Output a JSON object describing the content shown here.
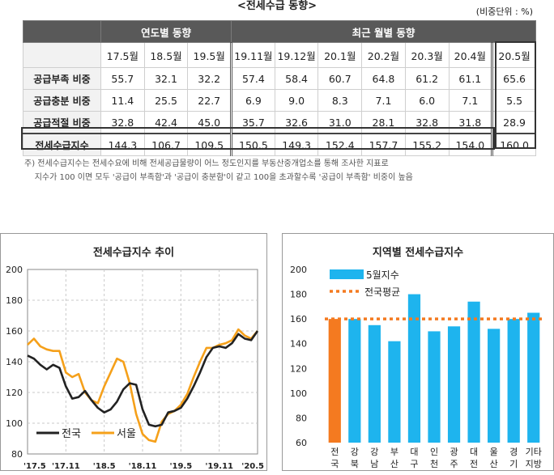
{
  "table": {
    "title": "<전세수급 동향>",
    "unit": "(비중단위 : %)",
    "group1": "연도별 동향",
    "group2": "최근 월별 동향",
    "columns": [
      "17.5월",
      "18.5월",
      "19.5월",
      "19.11월",
      "19.12월",
      "20.1월",
      "20.2월",
      "20.3월",
      "20.4월",
      "20.5월"
    ],
    "rows": [
      {
        "label": "공급부족 비중",
        "values": [
          "55.7",
          "32.1",
          "32.2",
          "57.4",
          "58.4",
          "60.7",
          "64.8",
          "61.2",
          "61.1",
          "65.6"
        ]
      },
      {
        "label": "공급충분 비중",
        "values": [
          "11.4",
          "25.5",
          "22.7",
          "6.9",
          "9.0",
          "8.3",
          "7.1",
          "6.0",
          "7.1",
          "5.5"
        ]
      },
      {
        "label": "공급적절 비중",
        "values": [
          "32.8",
          "42.4",
          "45.0",
          "35.7",
          "32.6",
          "31.0",
          "28.1",
          "32.8",
          "31.8",
          "28.9"
        ]
      },
      {
        "label": "전세수급지수",
        "values": [
          "144.3",
          "106.7",
          "109.5",
          "150.5",
          "149.3",
          "152.4",
          "157.7",
          "155.2",
          "154.0",
          "160.0"
        ]
      }
    ],
    "note_line1": "주) 전세수급지수는 전세수요에 비해 전세공급물량이 어느 정도인지를 부동산중개업소를 통해 조사한 지표로",
    "note_line2": "    지수가 100 이면 모두 '공급이 부족함'과 '공급이 충분함'이 같고 100을 초과할수록 '공급이 부족함' 비중이 높음"
  },
  "colors": {
    "national": "#222222",
    "seoul": "#f5a01a",
    "bar": "#1eb4ee",
    "bar_highlight": "#f47a20",
    "avg_line": "#f47a20"
  },
  "chart_data": [
    {
      "type": "line",
      "title": "전세수급지수 추이",
      "ylim": [
        80,
        200
      ],
      "yticks": [
        80,
        100,
        120,
        140,
        160,
        180,
        200
      ],
      "xtick_labels": [
        "'17.5",
        "'17.11",
        "'18.5",
        "'18.11",
        "'19.5",
        "'19.11",
        "'20.5"
      ],
      "x": [
        "'17.5",
        "'17.6",
        "'17.7",
        "'17.8",
        "'17.9",
        "'17.10",
        "'17.11",
        "'17.12",
        "'18.1",
        "'18.2",
        "'18.3",
        "'18.4",
        "'18.5",
        "'18.6",
        "'18.7",
        "'18.8",
        "'18.9",
        "'18.10",
        "'18.11",
        "'18.12",
        "'19.1",
        "'19.2",
        "'19.3",
        "'19.4",
        "'19.5",
        "'19.6",
        "'19.7",
        "'19.8",
        "'19.9",
        "'19.10",
        "'19.11",
        "'19.12",
        "'20.1",
        "'20.2",
        "'20.3",
        "'20.4",
        "'20.5"
      ],
      "series": [
        {
          "name": "전국",
          "values": [
            144,
            142,
            138,
            135,
            138,
            136,
            124,
            116,
            117,
            121,
            115,
            110,
            107,
            109,
            114,
            122,
            126,
            125,
            109,
            99,
            98,
            99,
            107,
            108,
            110,
            116,
            124,
            133,
            143,
            149,
            150,
            149,
            152,
            158,
            155,
            154,
            160
          ]
        },
        {
          "name": "서울",
          "values": [
            151,
            155,
            150,
            148,
            147,
            147,
            133,
            130,
            132,
            120,
            115,
            113,
            124,
            133,
            142,
            140,
            126,
            106,
            93,
            89,
            88,
            101,
            106,
            108,
            112,
            119,
            130,
            140,
            149,
            149,
            151,
            152,
            154,
            161,
            157,
            155,
            160
          ]
        }
      ]
    },
    {
      "type": "bar",
      "title": "지역별 전세수급지수",
      "ylim": [
        60,
        200
      ],
      "yticks": [
        60,
        80,
        100,
        120,
        140,
        160,
        180,
        200
      ],
      "categories": [
        [
          "전",
          "국"
        ],
        [
          "강",
          "북"
        ],
        [
          "강",
          "남"
        ],
        [
          "부",
          "산"
        ],
        [
          "대",
          "구"
        ],
        [
          "인",
          "천"
        ],
        [
          "광",
          "주"
        ],
        [
          "대",
          "전"
        ],
        [
          "울",
          "산"
        ],
        [
          "경",
          "기"
        ],
        [
          "기타",
          "지방"
        ]
      ],
      "series": [
        {
          "name": "5월지수",
          "values": [
            160,
            160,
            155,
            142,
            180,
            150,
            154,
            174,
            152,
            160,
            165
          ]
        }
      ],
      "reference_line": {
        "name": "전국평균",
        "value": 160
      }
    }
  ]
}
